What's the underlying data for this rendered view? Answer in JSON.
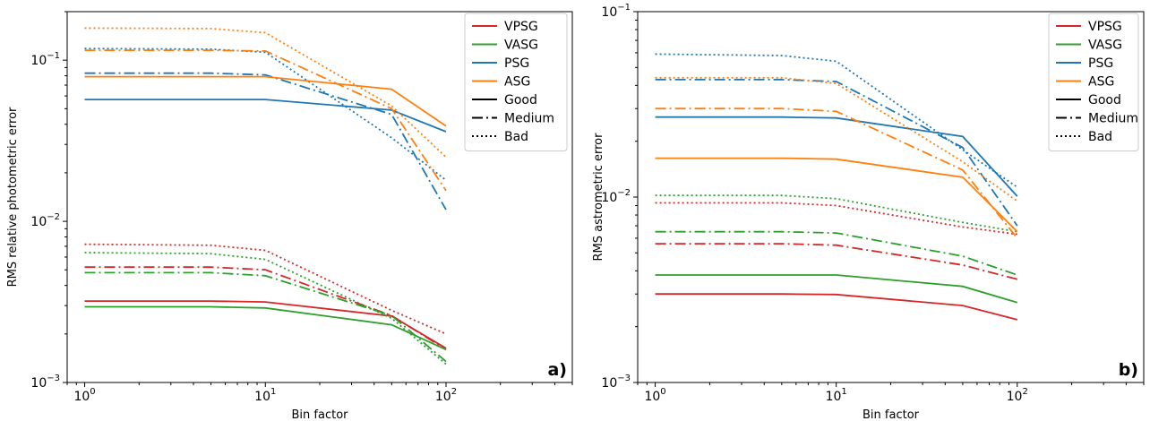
{
  "styles": [
    {
      "name": "Good",
      "dash": "solid"
    },
    {
      "name": "Medium",
      "dash": "dashdot"
    },
    {
      "name": "Bad",
      "dash": "dotted"
    }
  ],
  "colors": {
    "VPSG": "#d62728",
    "VASG": "#2ca02c",
    "PSG": "#1f77b4",
    "ASG": "#ff7f0e"
  },
  "chart_data": [
    {
      "type": "line",
      "panel_label": "a)",
      "xlabel": "Bin factor",
      "ylabel": "RMS relative photometric error",
      "xscale": "log",
      "yscale": "log",
      "xlim": [
        0.8,
        500
      ],
      "ylim": [
        0.001,
        0.2
      ],
      "x": [
        1,
        5,
        10,
        50,
        100
      ],
      "x_ticks": [
        {
          "value": 1,
          "label": "10^0"
        },
        {
          "value": 10,
          "label": "10^1"
        },
        {
          "value": 100,
          "label": "10^2"
        }
      ],
      "y_ticks": [
        {
          "value": 0.001,
          "label": "10^-3"
        },
        {
          "value": 0.01,
          "label": "10^-2"
        },
        {
          "value": 0.1,
          "label": "10^-1"
        }
      ],
      "legend": {
        "position": "top-right",
        "entries": [
          "VPSG",
          "VASG",
          "PSG",
          "ASG",
          "Good",
          "Medium",
          "Bad"
        ]
      },
      "series": [
        {
          "name": "VPSG",
          "style": "Good",
          "values": [
            0.0032,
            0.0032,
            0.00316,
            0.00258,
            0.00163
          ]
        },
        {
          "name": "VPSG",
          "style": "Medium",
          "values": [
            0.0052,
            0.0052,
            0.005,
            0.0026,
            0.0016
          ]
        },
        {
          "name": "VPSG",
          "style": "Bad",
          "values": [
            0.0072,
            0.0071,
            0.0066,
            0.0028,
            0.002
          ]
        },
        {
          "name": "VASG",
          "style": "Good",
          "values": [
            0.00295,
            0.00295,
            0.0029,
            0.00228,
            0.0016
          ]
        },
        {
          "name": "VASG",
          "style": "Medium",
          "values": [
            0.0048,
            0.0048,
            0.0046,
            0.0026,
            0.00135
          ]
        },
        {
          "name": "VASG",
          "style": "Bad",
          "values": [
            0.0064,
            0.0063,
            0.0058,
            0.0025,
            0.0013
          ]
        },
        {
          "name": "PSG",
          "style": "Good",
          "values": [
            0.057,
            0.057,
            0.057,
            0.049,
            0.036
          ]
        },
        {
          "name": "PSG",
          "style": "Medium",
          "values": [
            0.083,
            0.083,
            0.081,
            0.046,
            0.0118
          ]
        },
        {
          "name": "PSG",
          "style": "Bad",
          "values": [
            0.118,
            0.117,
            0.112,
            0.033,
            0.018
          ]
        },
        {
          "name": "ASG",
          "style": "Good",
          "values": [
            0.079,
            0.079,
            0.079,
            0.066,
            0.039
          ]
        },
        {
          "name": "ASG",
          "style": "Medium",
          "values": [
            0.115,
            0.115,
            0.114,
            0.05,
            0.0155
          ]
        },
        {
          "name": "ASG",
          "style": "Bad",
          "values": [
            0.158,
            0.157,
            0.148,
            0.052,
            0.025
          ]
        }
      ]
    },
    {
      "type": "line",
      "panel_label": "b)",
      "xlabel": "Bin factor",
      "ylabel": "RMS  astrometric error",
      "xscale": "log",
      "yscale": "log",
      "xlim": [
        0.8,
        500
      ],
      "ylim": [
        0.001,
        0.1
      ],
      "x": [
        1,
        5,
        10,
        50,
        100
      ],
      "x_ticks": [
        {
          "value": 1,
          "label": "10^0"
        },
        {
          "value": 10,
          "label": "10^1"
        },
        {
          "value": 100,
          "label": "10^2"
        }
      ],
      "y_ticks": [
        {
          "value": 0.001,
          "label": "10^-3"
        },
        {
          "value": 0.01,
          "label": "10^-2"
        },
        {
          "value": 0.1,
          "label": "10^-1"
        }
      ],
      "legend": {
        "position": "top-right",
        "entries": [
          "VPSG",
          "VASG",
          "PSG",
          "ASG",
          "Good",
          "Medium",
          "Bad"
        ]
      },
      "series": [
        {
          "name": "VPSG",
          "style": "Good",
          "values": [
            0.003,
            0.003,
            0.00298,
            0.0026,
            0.00218
          ]
        },
        {
          "name": "VPSG",
          "style": "Medium",
          "values": [
            0.0056,
            0.0056,
            0.0055,
            0.0043,
            0.0036
          ]
        },
        {
          "name": "VPSG",
          "style": "Bad",
          "values": [
            0.0093,
            0.0093,
            0.009,
            0.0069,
            0.0063
          ]
        },
        {
          "name": "VASG",
          "style": "Good",
          "values": [
            0.0038,
            0.0038,
            0.0038,
            0.0033,
            0.0027
          ]
        },
        {
          "name": "VASG",
          "style": "Medium",
          "values": [
            0.0065,
            0.0065,
            0.0064,
            0.0048,
            0.0038
          ]
        },
        {
          "name": "VASG",
          "style": "Bad",
          "values": [
            0.0102,
            0.0102,
            0.0098,
            0.0073,
            0.0065
          ]
        },
        {
          "name": "PSG",
          "style": "Good",
          "values": [
            0.027,
            0.027,
            0.0267,
            0.0212,
            0.0101
          ]
        },
        {
          "name": "PSG",
          "style": "Medium",
          "values": [
            0.043,
            0.043,
            0.042,
            0.0185,
            0.007
          ]
        },
        {
          "name": "PSG",
          "style": "Bad",
          "values": [
            0.059,
            0.058,
            0.054,
            0.018,
            0.0113
          ]
        },
        {
          "name": "ASG",
          "style": "Good",
          "values": [
            0.0162,
            0.0162,
            0.016,
            0.0128,
            0.0065
          ]
        },
        {
          "name": "ASG",
          "style": "Medium",
          "values": [
            0.03,
            0.03,
            0.029,
            0.014,
            0.006
          ]
        },
        {
          "name": "ASG",
          "style": "Bad",
          "values": [
            0.044,
            0.044,
            0.041,
            0.0155,
            0.0095
          ]
        }
      ]
    }
  ]
}
